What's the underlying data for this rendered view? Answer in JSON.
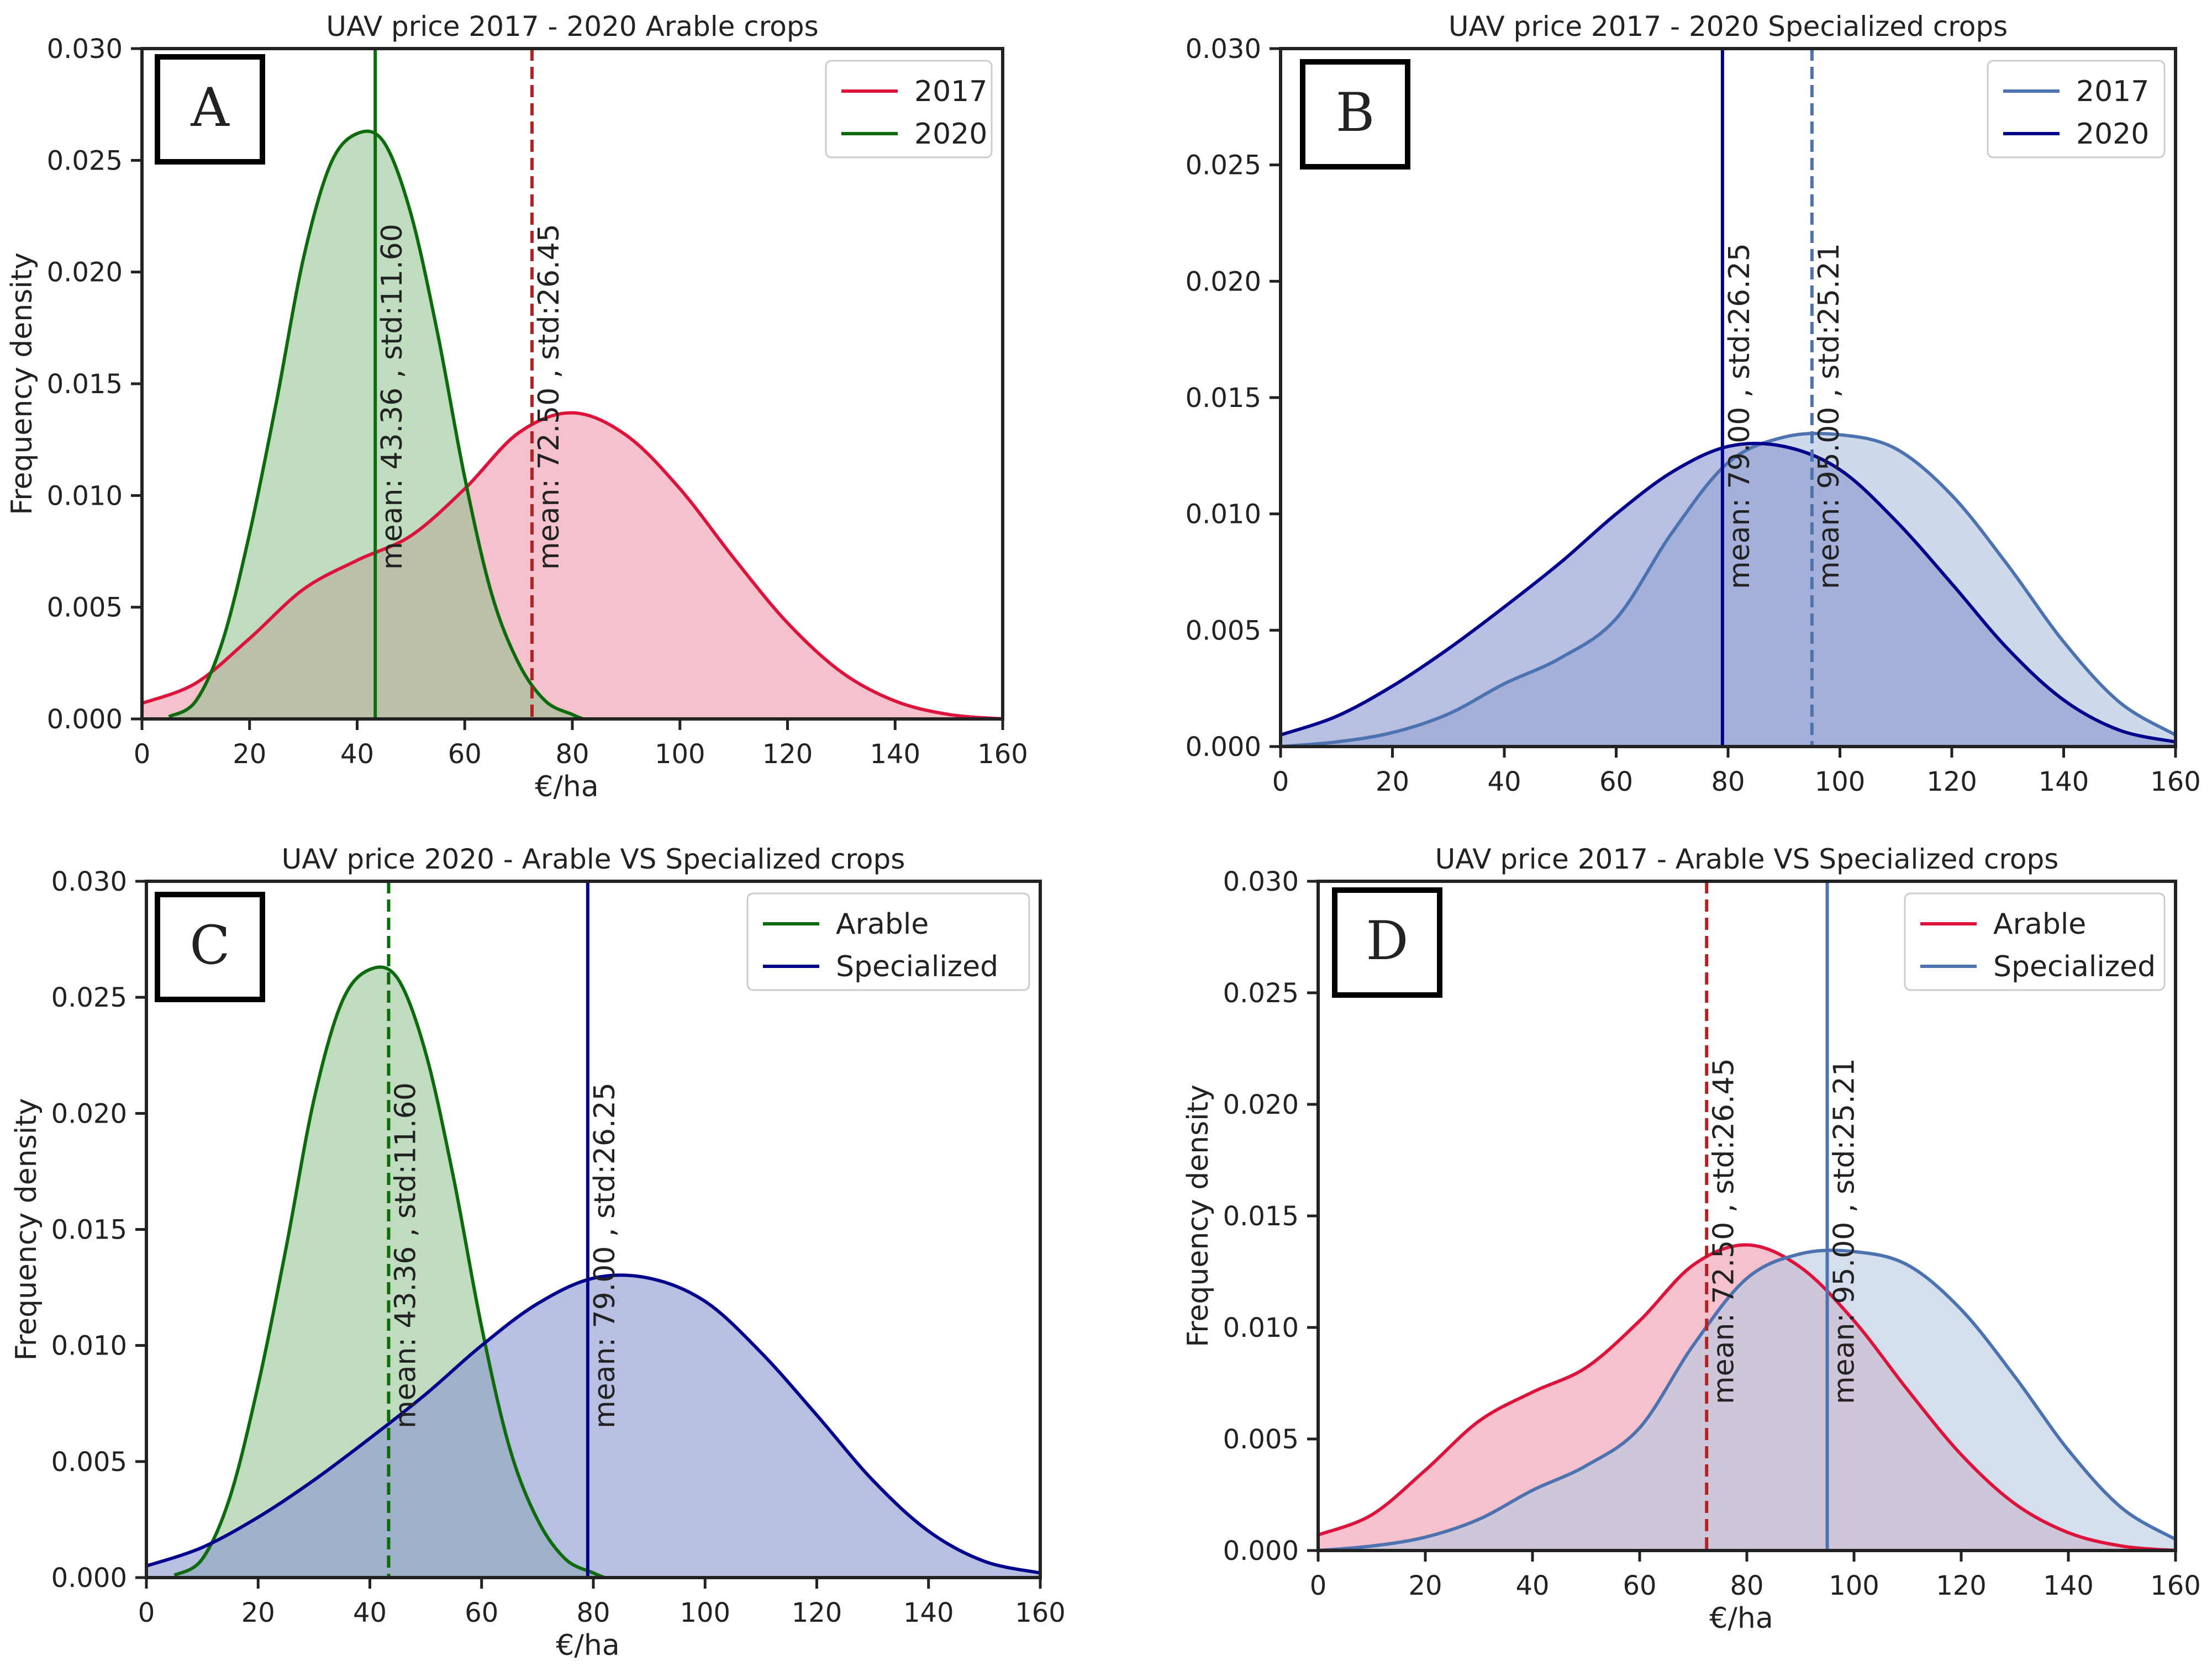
{
  "figure": {
    "x_axis_label": "€/ha",
    "y_axis_label": "Frequency density"
  },
  "chart_data": [
    {
      "type": "area",
      "panel_label": "A",
      "title": "UAV price 2017 - 2020 Arable crops",
      "xlabel": "€/ha",
      "ylabel": "Frequency density",
      "xlim": [
        0,
        160
      ],
      "ylim": [
        0,
        0.03
      ],
      "x_ticks": [
        "0",
        "20",
        "40",
        "60",
        "80",
        "100",
        "120",
        "140",
        "160"
      ],
      "y_ticks": [
        "0.000",
        "0.005",
        "0.010",
        "0.015",
        "0.020",
        "0.025",
        "0.030"
      ],
      "legend": {
        "position": "top-right",
        "entries": [
          "2017",
          "2020"
        ]
      },
      "series": [
        {
          "name": "2017",
          "color": "#dc143c",
          "fill": "#f3b3c2",
          "fill_opacity": 0.82,
          "x": [
            0,
            10,
            20,
            30,
            40,
            50,
            60,
            70,
            80,
            90,
            100,
            110,
            120,
            130,
            140,
            150,
            160
          ],
          "y": [
            0.0007,
            0.0016,
            0.0036,
            0.0058,
            0.0071,
            0.0082,
            0.0103,
            0.0128,
            0.0137,
            0.0127,
            0.0103,
            0.0072,
            0.0043,
            0.0021,
            0.0008,
            0.0002,
            0.0
          ]
        },
        {
          "name": "2020",
          "color": "#0d6b0d",
          "fill": "#8bbf8b",
          "fill_opacity": 0.55,
          "x": [
            5,
            10,
            15,
            20,
            25,
            30,
            35,
            40,
            45,
            50,
            55,
            60,
            65,
            70,
            75,
            80,
            82
          ],
          "y": [
            0.0001,
            0.0008,
            0.0035,
            0.0083,
            0.0142,
            0.0206,
            0.0248,
            0.0262,
            0.0258,
            0.0226,
            0.0172,
            0.0108,
            0.0056,
            0.0025,
            0.0008,
            0.0002,
            0.0
          ]
        }
      ],
      "mean_lines": [
        {
          "value": 43.36,
          "color": "#0d6b0d",
          "dashed": false,
          "label": "mean: 43.36 , std:11.60"
        },
        {
          "value": 72.5,
          "color": "#b22222",
          "dashed": true,
          "label": "mean: 72.50 , std:26.45"
        }
      ]
    },
    {
      "type": "area",
      "panel_label": "B",
      "title": "UAV price 2017 - 2020 Specialized crops",
      "xlabel": "",
      "ylabel": "",
      "xlim": [
        0,
        160
      ],
      "ylim": [
        0,
        0.03
      ],
      "x_ticks": [
        "0",
        "20",
        "40",
        "60",
        "80",
        "100",
        "120",
        "140",
        "160"
      ],
      "y_ticks": [
        "0.000",
        "0.005",
        "0.010",
        "0.015",
        "0.020",
        "0.025",
        "0.030"
      ],
      "legend": {
        "position": "top-right",
        "entries": [
          "2017",
          "2020"
        ]
      },
      "series": [
        {
          "name": "2017",
          "color": "#4c72b0",
          "fill": "#b9c9e2",
          "fill_opacity": 0.7,
          "x": [
            0,
            10,
            20,
            30,
            40,
            50,
            60,
            70,
            80,
            90,
            100,
            110,
            120,
            130,
            140,
            150,
            160
          ],
          "y": [
            0.0,
            0.0002,
            0.0006,
            0.0014,
            0.0027,
            0.0038,
            0.0055,
            0.0092,
            0.0122,
            0.0133,
            0.0134,
            0.0128,
            0.0108,
            0.0078,
            0.0045,
            0.0019,
            0.0005
          ]
        },
        {
          "name": "2020",
          "color": "#00008b",
          "fill": "#8b95cf",
          "fill_opacity": 0.6,
          "x": [
            0,
            10,
            20,
            30,
            40,
            50,
            60,
            70,
            80,
            90,
            100,
            110,
            120,
            130,
            140,
            150,
            160
          ],
          "y": [
            0.0005,
            0.0013,
            0.0026,
            0.0042,
            0.006,
            0.0079,
            0.01,
            0.0118,
            0.0129,
            0.0129,
            0.0119,
            0.0097,
            0.007,
            0.0042,
            0.002,
            0.0007,
            0.0002
          ]
        }
      ],
      "mean_lines": [
        {
          "value": 79.0,
          "color": "#00008b",
          "dashed": false,
          "label": "mean: 79.00 , std:26.25"
        },
        {
          "value": 95.0,
          "color": "#4c72b0",
          "dashed": true,
          "label": "mean: 95.00 , std:25.21"
        }
      ]
    },
    {
      "type": "area",
      "panel_label": "C",
      "title": "UAV price 2020 - Arable VS Specialized crops",
      "xlabel": "€/ha",
      "ylabel": "Frequency density",
      "xlim": [
        0,
        160
      ],
      "ylim": [
        0,
        0.03
      ],
      "x_ticks": [
        "0",
        "20",
        "40",
        "60",
        "80",
        "100",
        "120",
        "140",
        "160"
      ],
      "y_ticks": [
        "0.000",
        "0.005",
        "0.010",
        "0.015",
        "0.020",
        "0.025",
        "0.030"
      ],
      "legend": {
        "position": "top-right",
        "entries": [
          "Arable",
          "Specialized"
        ]
      },
      "series": [
        {
          "name": "Arable",
          "color": "#0d6b0d",
          "fill": "#8bbf8b",
          "fill_opacity": 0.55,
          "x": [
            5,
            10,
            15,
            20,
            25,
            30,
            35,
            40,
            45,
            50,
            55,
            60,
            65,
            70,
            75,
            80,
            82
          ],
          "y": [
            0.0001,
            0.0008,
            0.0035,
            0.0083,
            0.0142,
            0.0206,
            0.0248,
            0.0262,
            0.0258,
            0.0226,
            0.0172,
            0.0108,
            0.0056,
            0.0025,
            0.0008,
            0.0002,
            0.0
          ]
        },
        {
          "name": "Specialized",
          "color": "#00008b",
          "fill": "#8b95cf",
          "fill_opacity": 0.6,
          "x": [
            0,
            10,
            20,
            30,
            40,
            50,
            60,
            70,
            80,
            90,
            100,
            110,
            120,
            130,
            140,
            150,
            160
          ],
          "y": [
            0.0005,
            0.0013,
            0.0026,
            0.0042,
            0.006,
            0.0079,
            0.01,
            0.0118,
            0.0129,
            0.0129,
            0.0119,
            0.0097,
            0.007,
            0.0042,
            0.002,
            0.0007,
            0.0002
          ]
        }
      ],
      "mean_lines": [
        {
          "value": 43.36,
          "color": "#0d6b0d",
          "dashed": true,
          "label": "mean: 43.36 , std:11.60"
        },
        {
          "value": 79.0,
          "color": "#00008b",
          "dashed": false,
          "label": "mean: 79.00 , std:26.25"
        }
      ]
    },
    {
      "type": "area",
      "panel_label": "D",
      "title": "UAV price 2017 - Arable VS Specialized crops",
      "xlabel": "€/ha",
      "ylabel": "Frequency density",
      "xlim": [
        0,
        160
      ],
      "ylim": [
        0,
        0.03
      ],
      "x_ticks": [
        "0",
        "20",
        "40",
        "60",
        "80",
        "100",
        "120",
        "140",
        "160"
      ],
      "y_ticks": [
        "0.000",
        "0.005",
        "0.010",
        "0.015",
        "0.020",
        "0.025",
        "0.030"
      ],
      "legend": {
        "position": "top-right",
        "entries": [
          "Arable",
          "Specialized"
        ]
      },
      "series": [
        {
          "name": "Arable",
          "color": "#dc143c",
          "fill": "#f3b3c2",
          "fill_opacity": 0.82,
          "x": [
            0,
            10,
            20,
            30,
            40,
            50,
            60,
            70,
            80,
            90,
            100,
            110,
            120,
            130,
            140,
            150,
            160
          ],
          "y": [
            0.0007,
            0.0016,
            0.0036,
            0.0058,
            0.0071,
            0.0082,
            0.0103,
            0.0128,
            0.0137,
            0.0127,
            0.0103,
            0.0072,
            0.0043,
            0.0021,
            0.0008,
            0.0002,
            0.0
          ]
        },
        {
          "name": "Specialized",
          "color": "#4c72b0",
          "fill": "#b9c9e2",
          "fill_opacity": 0.62,
          "x": [
            0,
            10,
            20,
            30,
            40,
            50,
            60,
            70,
            80,
            90,
            100,
            110,
            120,
            130,
            140,
            150,
            160
          ],
          "y": [
            0.0,
            0.0002,
            0.0006,
            0.0014,
            0.0027,
            0.0038,
            0.0055,
            0.0092,
            0.0122,
            0.0133,
            0.0134,
            0.0128,
            0.0108,
            0.0078,
            0.0045,
            0.0019,
            0.0005
          ]
        }
      ],
      "mean_lines": [
        {
          "value": 72.5,
          "color": "#b22222",
          "dashed": true,
          "label": "mean: 72.50 , std:26.45"
        },
        {
          "value": 95.0,
          "color": "#4c72b0",
          "dashed": false,
          "label": "mean: 95.00 , std:25.21"
        }
      ]
    }
  ]
}
